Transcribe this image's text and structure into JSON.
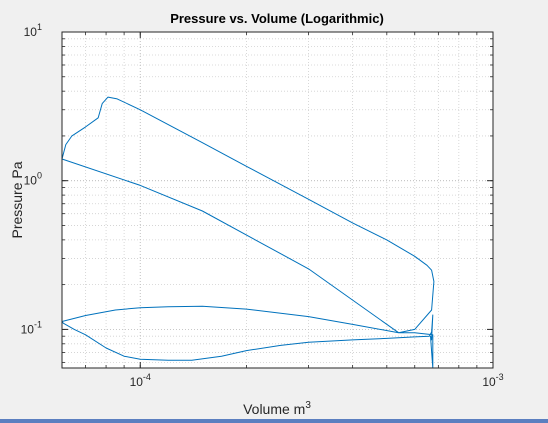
{
  "chart_data": {
    "type": "line",
    "title": "Pressure vs. Volume (Logarithmic)",
    "xlabel": "Volume m",
    "xlabel_superscript": "3",
    "ylabel": "Pressure Pa",
    "xscale": "log",
    "yscale": "log",
    "xlim": [
      6e-05,
      0.001
    ],
    "ylim": [
      0.055,
      10
    ],
    "x_ticks": [
      {
        "value": 0.0001,
        "base": "10",
        "exp": "-4"
      },
      {
        "value": 0.001,
        "base": "10",
        "exp": "-3"
      }
    ],
    "y_ticks": [
      {
        "value": 0.1,
        "base": "10",
        "exp": "-1"
      },
      {
        "value": 1,
        "base": "10",
        "exp": "0"
      },
      {
        "value": 10,
        "base": "10",
        "exp": "1"
      }
    ],
    "grid": true,
    "minor_grid": true,
    "series": [
      {
        "color": "#0072bd",
        "points": [
          [
            6e-05,
            1.4
          ],
          [
            6.15e-05,
            1.75
          ],
          [
            6.4e-05,
            2.0
          ],
          [
            7e-05,
            2.3
          ],
          [
            7.6e-05,
            2.65
          ],
          [
            7.8e-05,
            3.3
          ],
          [
            8.1e-05,
            3.65
          ],
          [
            8.6e-05,
            3.55
          ],
          [
            0.0001,
            3.0
          ],
          [
            0.00015,
            1.8
          ],
          [
            0.0002,
            1.25
          ],
          [
            0.0003,
            0.75
          ],
          [
            0.0004,
            0.52
          ],
          [
            0.0005,
            0.4
          ],
          [
            0.0006,
            0.31
          ],
          [
            0.00065,
            0.27
          ],
          [
            0.00067,
            0.25
          ],
          [
            0.00068,
            0.21
          ],
          [
            0.00067,
            0.135
          ],
          [
            0.0006,
            0.1
          ],
          [
            0.00054,
            0.095
          ],
          [
            0.0004,
            0.108
          ],
          [
            0.0003,
            0.122
          ],
          [
            0.0002,
            0.137
          ],
          [
            0.00015,
            0.143
          ],
          [
            0.00012,
            0.142
          ],
          [
            0.0001,
            0.14
          ],
          [
            8.5e-05,
            0.135
          ],
          [
            7e-05,
            0.124
          ],
          [
            6e-05,
            0.113
          ],
          [
            6.05e-05,
            0.11
          ],
          [
            6.5e-05,
            0.1
          ],
          [
            7e-05,
            0.092
          ],
          [
            8e-05,
            0.075
          ],
          [
            9e-05,
            0.066
          ],
          [
            0.0001,
            0.063
          ],
          [
            0.00012,
            0.062
          ],
          [
            0.00014,
            0.062
          ],
          [
            0.00017,
            0.066
          ],
          [
            0.0002,
            0.072
          ],
          [
            0.00025,
            0.078
          ],
          [
            0.0003,
            0.082
          ],
          [
            0.0004,
            0.085
          ],
          [
            0.0005,
            0.087
          ],
          [
            0.0006,
            0.089
          ],
          [
            0.00066,
            0.09
          ],
          [
            0.00067,
            0.096
          ],
          [
            0.000675,
            0.125
          ],
          [
            0.00067,
            0.085
          ],
          [
            0.000665,
            0.09
          ],
          [
            0.000675,
            0.055
          ],
          [
            0.000675,
            0.092
          ],
          [
            0.0006,
            0.095
          ],
          [
            0.00054,
            0.095
          ],
          [
            0.0003,
            0.255
          ],
          [
            0.00015,
            0.625
          ],
          [
            0.0001,
            0.93
          ],
          [
            6e-05,
            1.4
          ]
        ]
      }
    ]
  }
}
